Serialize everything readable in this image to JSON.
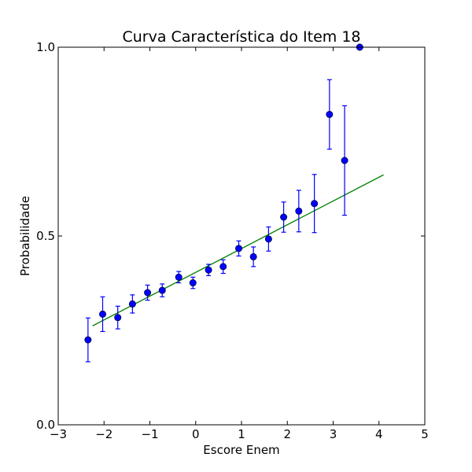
{
  "chart_data": {
    "type": "scatter",
    "title": "Curva Característica do Item 18",
    "xlabel": "Escore Enem",
    "ylabel": "Probabilidade",
    "xlim": [
      -3,
      5
    ],
    "ylim": [
      0.0,
      1.0
    ],
    "xticks": [
      -3,
      -2,
      -1,
      0,
      1,
      2,
      3,
      4,
      5
    ],
    "xtick_labels": [
      "−3",
      "−2",
      "−1",
      "0",
      "1",
      "2",
      "3",
      "4",
      "5"
    ],
    "yticks": [
      0.0,
      0.5,
      1.0
    ],
    "ytick_labels": [
      "0.0",
      "0.5",
      "1.0"
    ],
    "grid": false,
    "legend": "none",
    "series": [
      {
        "type": "errorbar",
        "color": "#0000ff",
        "x": [
          -2.35,
          -2.03,
          -1.7,
          -1.38,
          -1.05,
          -0.73,
          -0.37,
          -0.06,
          0.28,
          0.6,
          0.94,
          1.26,
          1.59,
          1.92,
          2.25,
          2.59,
          2.92,
          3.25,
          3.58
        ],
        "y": [
          0.225,
          0.293,
          0.284,
          0.32,
          0.35,
          0.356,
          0.391,
          0.376,
          0.41,
          0.419,
          0.467,
          0.445,
          0.492,
          0.55,
          0.566,
          0.586,
          0.822,
          0.7,
          1.0
        ],
        "err": [
          0.058,
          0.046,
          0.03,
          0.024,
          0.02,
          0.017,
          0.015,
          0.015,
          0.015,
          0.018,
          0.02,
          0.026,
          0.032,
          0.04,
          0.055,
          0.077,
          0.092,
          0.145,
          0.0
        ]
      },
      {
        "type": "line",
        "color": "#008000",
        "x": [
          -2.25,
          4.1
        ],
        "y": [
          0.262,
          0.662
        ]
      }
    ]
  }
}
